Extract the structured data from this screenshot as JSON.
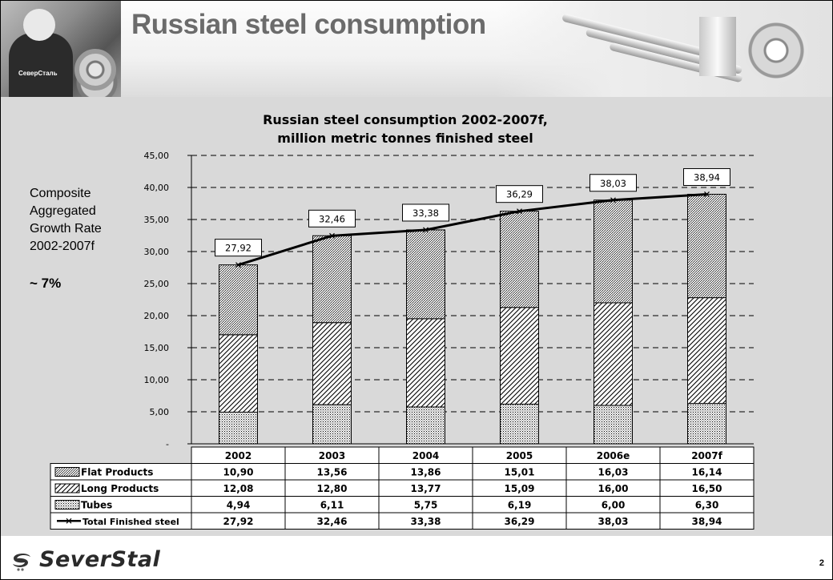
{
  "slide": {
    "title": "Russian steel consumption",
    "side_text": {
      "lines": [
        "Composite",
        "Aggregated",
        "Growth Rate",
        "2002-2007f"
      ],
      "rate": "~ 7%"
    },
    "page_number": "2",
    "logo_text": "SeverStal",
    "header_logo_text": "СеверСталь"
  },
  "chart_data": {
    "type": "bar",
    "stacked": true,
    "title": [
      "Russian steel consumption 2002-2007f,",
      "million metric tonnes finished steel"
    ],
    "categories": [
      "2002",
      "2003",
      "2004",
      "2005",
      "2006e",
      "2007f"
    ],
    "series": [
      {
        "name": "Tubes",
        "values": [
          4.94,
          6.11,
          5.75,
          6.19,
          6.0,
          6.3
        ],
        "labels": [
          "4,94",
          "6,11",
          "5,75",
          "6,19",
          "6,00",
          "6,30"
        ],
        "pattern": "dots"
      },
      {
        "name": "Long Products",
        "values": [
          12.08,
          12.8,
          13.77,
          15.09,
          16.0,
          16.5
        ],
        "labels": [
          "12,08",
          "12,80",
          "13,77",
          "15,09",
          "16,00",
          "16,50"
        ],
        "pattern": "hatch"
      },
      {
        "name": "Flat Products",
        "values": [
          10.9,
          13.56,
          13.86,
          15.01,
          16.03,
          16.14
        ],
        "labels": [
          "10,90",
          "13,56",
          "13,86",
          "15,01",
          "16,03",
          "16,14"
        ],
        "pattern": "fine"
      }
    ],
    "total": {
      "name": "Total Finished steel",
      "type": "line",
      "values": [
        27.92,
        32.46,
        33.38,
        36.29,
        38.03,
        38.94
      ],
      "labels": [
        "27,92",
        "32,46",
        "33,38",
        "36,29",
        "38,03",
        "38,94"
      ]
    },
    "table_order": [
      "Flat Products",
      "Long Products",
      "Tubes",
      "Total Finished steel"
    ],
    "ylim": [
      0,
      45
    ],
    "yticks": [
      "-",
      "5,00",
      "10,00",
      "15,00",
      "20,00",
      "25,00",
      "30,00",
      "35,00",
      "40,00",
      "45,00"
    ],
    "grid": true,
    "legend": "data-table"
  }
}
